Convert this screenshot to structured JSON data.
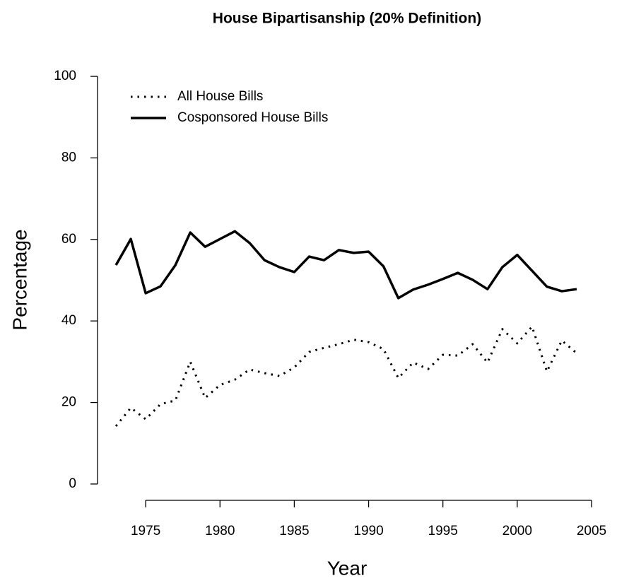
{
  "chart_data": {
    "type": "line",
    "title": "House Bipartisanship (20% Definition)",
    "x_label": "Year",
    "y_label": "Percentage",
    "x": [
      1973,
      1974,
      1975,
      1976,
      1977,
      1978,
      1979,
      1980,
      1981,
      1982,
      1983,
      1984,
      1985,
      1986,
      1987,
      1988,
      1989,
      1990,
      1991,
      1992,
      1993,
      1994,
      1995,
      1996,
      1997,
      1998,
      1999,
      2000,
      2001,
      2002,
      2003,
      2004
    ],
    "series": [
      {
        "name": "All House Bills",
        "color": "#000000",
        "linestyle": "dotted",
        "values": [
          14.2,
          18.7,
          15.9,
          19.6,
          20.5,
          30.0,
          21.1,
          24.3,
          25.6,
          28.1,
          27.2,
          26.5,
          28.6,
          32.4,
          33.4,
          34.3,
          35.4,
          34.8,
          33.1,
          26.0,
          29.8,
          28.2,
          31.7,
          31.5,
          34.3,
          29.8,
          38.0,
          34.5,
          38.6,
          27.6,
          35.2,
          32.1
        ]
      },
      {
        "name": "Cosponsored House Bills",
        "color": "#000000",
        "linestyle": "solid",
        "values": [
          53.7,
          60.1,
          46.8,
          48.5,
          53.7,
          61.7,
          58.2,
          60.1,
          62.0,
          59.1,
          54.9,
          53.2,
          52.0,
          55.8,
          54.9,
          57.4,
          56.7,
          57.0,
          53.4,
          45.6,
          47.7,
          48.9,
          50.3,
          51.8,
          50.1,
          47.8,
          53.2,
          56.2,
          52.3,
          48.4,
          47.3,
          47.8
        ]
      }
    ],
    "xlim": [
      1971.76,
      2005.24
    ],
    "xticks": [
      1975,
      1980,
      1985,
      1990,
      1995,
      2000,
      2005
    ],
    "ylim": [
      -4,
      104
    ],
    "yticks": [
      0,
      20,
      40,
      60,
      80,
      100
    ],
    "legend": "top-left",
    "grid": false
  }
}
